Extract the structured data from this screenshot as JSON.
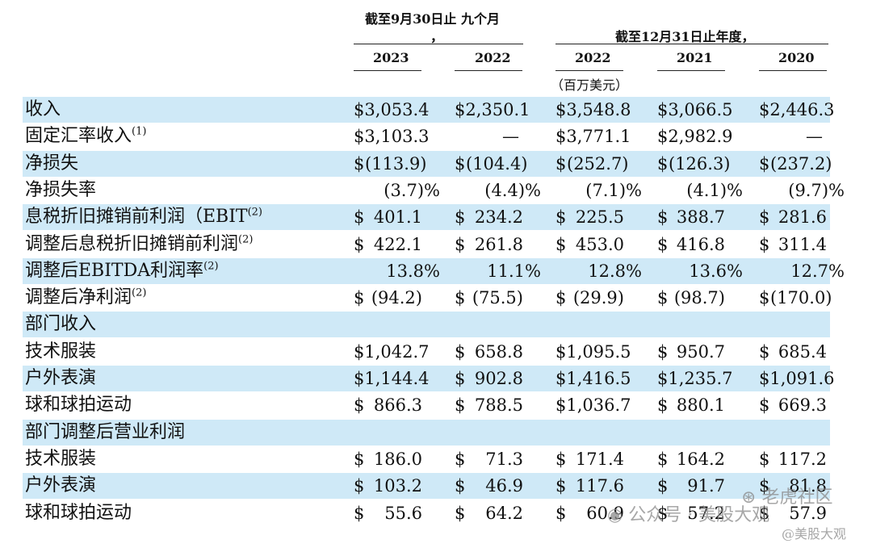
{
  "header": {
    "nine_months_label": "截至9月30日止 九个月",
    "nine_months_comma": "，",
    "year_label": "截至12月31日止年度，",
    "columns": [
      "2023",
      "2022",
      "2022",
      "2021",
      "2020"
    ],
    "unit": "（百万美元）"
  },
  "rows": [
    {
      "label": "收入",
      "note": "",
      "shaded": true,
      "style": "dollar_full",
      "values": [
        "$3,053.4",
        "$2,350.1",
        "$3,548.8",
        "$3,066.5",
        "$2,446.3"
      ]
    },
    {
      "label": "固定汇率收入",
      "note": "(1)",
      "shaded": false,
      "style": "dollar_full",
      "values": [
        "$3,103.3",
        "—",
        "$3,771.1",
        "$2,982.9",
        "—"
      ]
    },
    {
      "label": "净损失",
      "note": "",
      "shaded": true,
      "style": "dollar_sep",
      "values": [
        "(113.9)",
        "(104.4)",
        "(252.7)",
        "(126.3)",
        "(237.2)"
      ]
    },
    {
      "label": "净损失率",
      "note": "",
      "shaded": false,
      "style": "pct",
      "values": [
        "(3.7)%",
        "(4.4)%",
        "(7.1)%",
        "(4.1)%",
        "(9.7)%"
      ]
    },
    {
      "label": "息税折旧摊销前利润（EBIT",
      "note": "(2)",
      "shaded": true,
      "style": "dollar_sep",
      "values": [
        "401.1",
        "234.2",
        "225.5",
        "388.7",
        "281.6"
      ]
    },
    {
      "label": "调整后息税折旧摊销前利润",
      "note": "(2)",
      "shaded": false,
      "style": "dollar_sep",
      "values": [
        "422.1",
        "261.8",
        "453.0",
        "416.8",
        "311.4"
      ]
    },
    {
      "label": "调整后EBITDA利润率",
      "note": "(2)",
      "shaded": true,
      "style": "pct",
      "values": [
        "13.8%",
        "11.1%",
        "12.8%",
        "13.6%",
        "12.7%"
      ]
    },
    {
      "label": "调整后净利润",
      "note": "(2)",
      "shaded": false,
      "style": "dollar_sep",
      "values": [
        "(94.2)",
        "(75.5)",
        "(29.9)",
        "(98.7)",
        "(170.0)"
      ]
    },
    {
      "label": "部门收入",
      "note": "",
      "shaded": true,
      "style": "section",
      "values": []
    },
    {
      "label": "技术服装",
      "note": "",
      "shaded": false,
      "style": "mixed",
      "values": [
        "$1,042.7",
        "658.8",
        "$1,095.5",
        "950.7",
        "685.4"
      ]
    },
    {
      "label": "户外表演",
      "note": "",
      "shaded": true,
      "style": "mixed",
      "values": [
        "$1,144.4",
        "902.8",
        "$1,416.5",
        "$1,235.7",
        "$1,091.6"
      ]
    },
    {
      "label": "球和球拍运动",
      "note": "",
      "shaded": false,
      "style": "mixed",
      "values": [
        "866.3",
        "788.5",
        "$1,036.7",
        "880.1",
        "669.3"
      ]
    },
    {
      "label": "部门调整后营业利润",
      "note": "",
      "shaded": true,
      "style": "section",
      "values": []
    },
    {
      "label": "技术服装",
      "note": "",
      "shaded": false,
      "style": "dollar_sep",
      "values": [
        "186.0",
        "71.3",
        "171.4",
        "164.2",
        "117.2"
      ]
    },
    {
      "label": "户外表演",
      "note": "",
      "shaded": true,
      "style": "dollar_sep",
      "values": [
        "103.2",
        "46.9",
        "117.6",
        "91.7",
        "81.8"
      ]
    },
    {
      "label": "球和球拍运动",
      "note": "",
      "shaded": false,
      "style": "dollar_sep",
      "values": [
        "55.6",
        "64.2",
        "60.9",
        "57.2",
        "57.9"
      ]
    }
  ],
  "watermark": {
    "text1": "公众号 · 美股大观",
    "text2": "老虎社区",
    "text3": "@美股大观"
  }
}
